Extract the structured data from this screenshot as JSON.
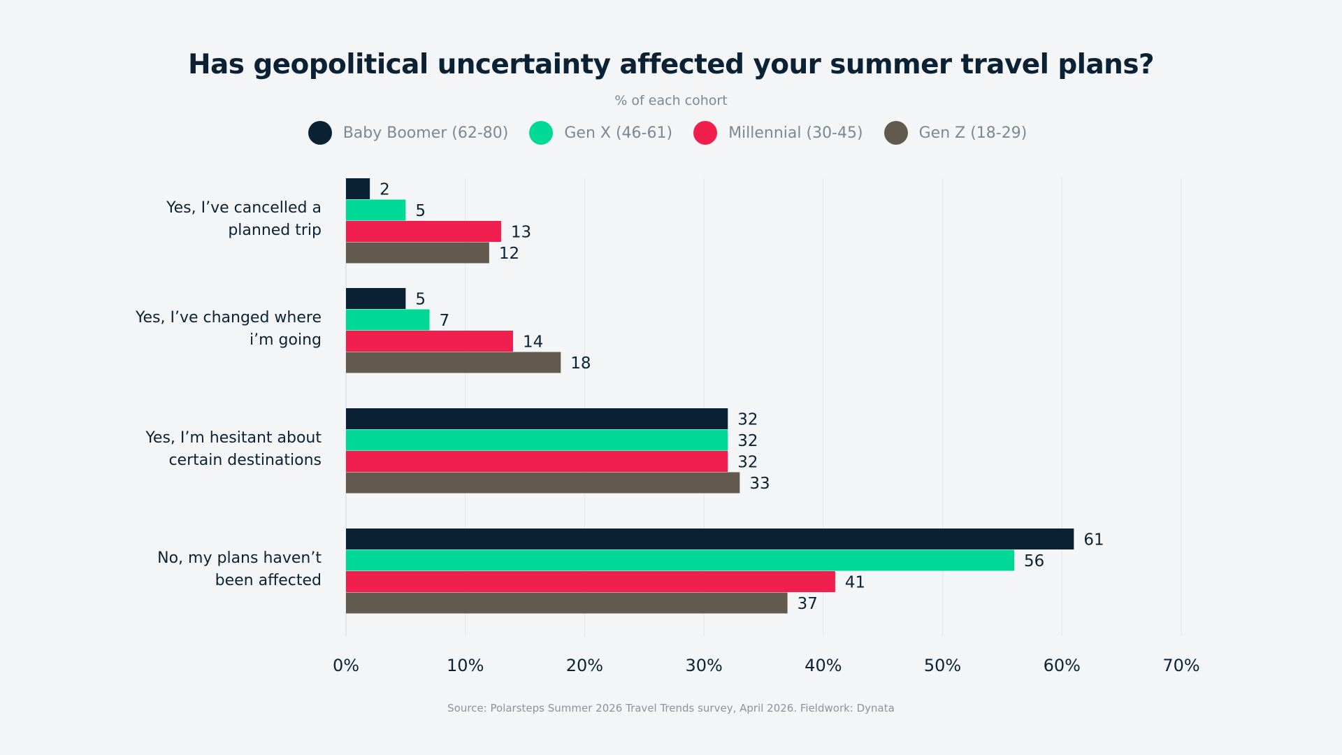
{
  "chart_data": {
    "type": "bar",
    "orientation": "horizontal",
    "title": "Has geopolitical uncertainty affected your summer travel plans?",
    "subtitle": "% of each cohort",
    "categories": [
      [
        "Yes, I’ve cancelled a",
        "planned trip"
      ],
      [
        "Yes, I’ve changed where",
        "i’m going"
      ],
      [
        "Yes, I’m hesitant about",
        "certain destinations"
      ],
      [
        "No, my plans haven’t",
        "been affected"
      ]
    ],
    "series": [
      {
        "name": "Baby Boomer (62-80)",
        "color": "#0b2235",
        "values": [
          2,
          5,
          32,
          61
        ]
      },
      {
        "name": "Gen X (46-61)",
        "color": "#00d995",
        "values": [
          5,
          7,
          32,
          56
        ]
      },
      {
        "name": "Millennial (30-45)",
        "color": "#f01f4d",
        "values": [
          13,
          14,
          32,
          41
        ]
      },
      {
        "name": "Gen Z (18-29)",
        "color": "#625a4f",
        "values": [
          12,
          18,
          33,
          37
        ]
      }
    ],
    "xlim": [
      0,
      70
    ],
    "x_ticks": [
      "0%",
      "10%",
      "20%",
      "30%",
      "40%",
      "50%",
      "60%",
      "70%"
    ],
    "grid": true,
    "legend_position": "top-center",
    "data_labels": true
  },
  "source": "Source: Polarsteps Summer 2026 Travel Trends survey, April 2026. Fieldwork: Dynata"
}
